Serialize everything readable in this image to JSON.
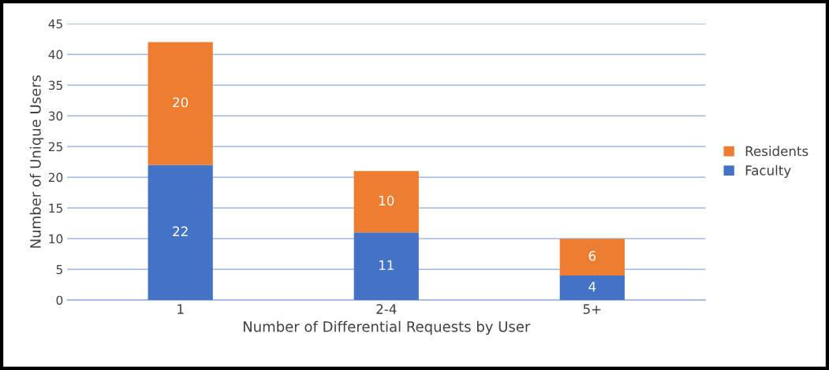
{
  "chart_data": {
    "type": "bar",
    "stacked": true,
    "xlabel": "Number of Differential Requests by User",
    "ylabel": "Number of Unique Users",
    "categories": [
      "1",
      "2-4",
      "5+"
    ],
    "series": [
      {
        "name": "Faculty",
        "color": "#4472c4",
        "values": [
          22,
          11,
          4
        ]
      },
      {
        "name": "Residents",
        "color": "#ed7d31",
        "values": [
          20,
          10,
          6
        ]
      }
    ],
    "ylim": [
      0,
      45
    ],
    "yticks": [
      0,
      5,
      10,
      15,
      20,
      25,
      30,
      35,
      40,
      45
    ],
    "grid": "y",
    "legend": "right",
    "data_labels": true
  }
}
